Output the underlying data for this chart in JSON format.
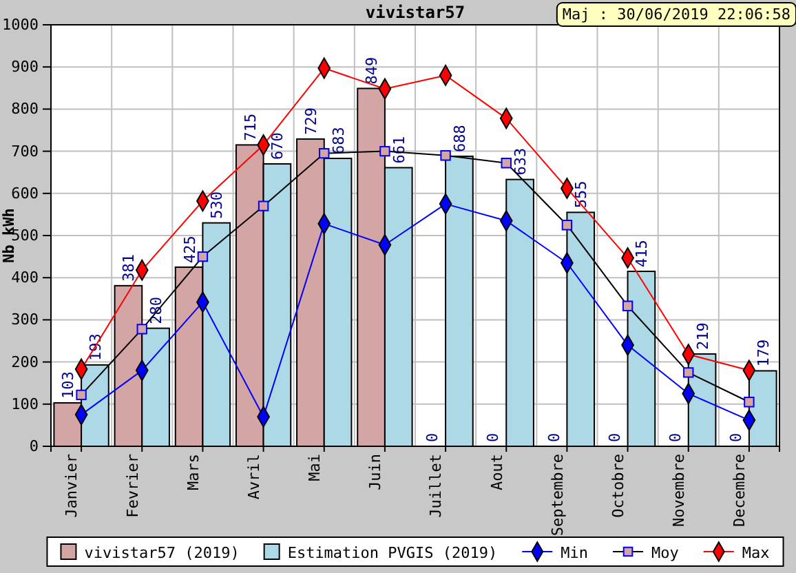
{
  "chart_data": {
    "type": "bar",
    "title": "vivistar57",
    "ylabel": "Nb kWh",
    "annotations": [
      "Maj : 30/06/2019 22:06:58"
    ],
    "categories": [
      "Janvier",
      "Fevrier",
      "Mars",
      "Avril",
      "Mai",
      "Juin",
      "Juillet",
      "Aout",
      "Septembre",
      "Octobre",
      "Novembre",
      "Decembre"
    ],
    "series": [
      {
        "name": "vivistar57 (2019)",
        "color": "#d4a5a5",
        "values": [
          103,
          381,
          425,
          715,
          729,
          849,
          0,
          0,
          0,
          0,
          0,
          0
        ],
        "value_labels": [
          "103",
          "381",
          "425",
          "715",
          "729",
          "849",
          "0",
          "0",
          "0",
          "0",
          "0",
          "0"
        ]
      },
      {
        "name": "Estimation PVGIS (2019)",
        "color": "#add8e6",
        "values": [
          193,
          280,
          530,
          670,
          683,
          661,
          688,
          633,
          555,
          415,
          219,
          179
        ],
        "value_labels": [
          "193",
          "280",
          "530",
          "670",
          "683",
          "661",
          "688",
          "633",
          "555",
          "415",
          "219",
          "179"
        ]
      },
      {
        "name": "Min",
        "type": "line",
        "color": "#0000ff",
        "marker": "diamond",
        "values": [
          75,
          180,
          342,
          70,
          528,
          478,
          575,
          535,
          435,
          240,
          125,
          62
        ]
      },
      {
        "name": "Moy",
        "type": "line",
        "color": "#000000",
        "marker": "square",
        "values": [
          122,
          278,
          450,
          570,
          695,
          700,
          690,
          672,
          525,
          333,
          175,
          105
        ]
      },
      {
        "name": "Max",
        "type": "line",
        "color": "#ff0000",
        "marker": "diamond",
        "values": [
          183,
          418,
          582,
          715,
          897,
          848,
          880,
          778,
          612,
          447,
          218,
          180
        ]
      }
    ],
    "ylim": [
      0,
      1000
    ],
    "yticks": [
      0,
      100,
      200,
      300,
      400,
      500,
      600,
      700,
      800,
      900,
      1000
    ],
    "grid": true,
    "legend": "bottom"
  }
}
